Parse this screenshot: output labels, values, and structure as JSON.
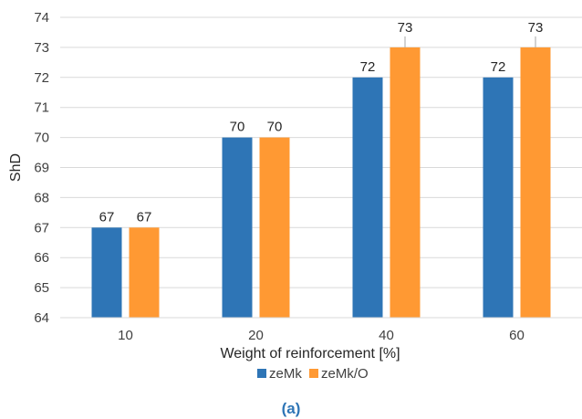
{
  "chart_data": {
    "type": "bar",
    "categories": [
      "10",
      "20",
      "40",
      "60"
    ],
    "series": [
      {
        "name": "zeMk",
        "values": [
          67,
          70,
          72,
          72
        ],
        "color": "#2E75B6"
      },
      {
        "name": "zeMk/O",
        "values": [
          67,
          70,
          73,
          73
        ],
        "color": "#FF9933"
      }
    ],
    "xlabel": "Weight of reinforcement [%]",
    "ylabel": "ShD",
    "ylim": [
      64,
      74
    ],
    "yticks": [
      64,
      65,
      66,
      67,
      68,
      69,
      70,
      71,
      72,
      73,
      74
    ],
    "grid": true,
    "legend_position": "bottom",
    "data_labels": true
  },
  "caption": "(a)"
}
